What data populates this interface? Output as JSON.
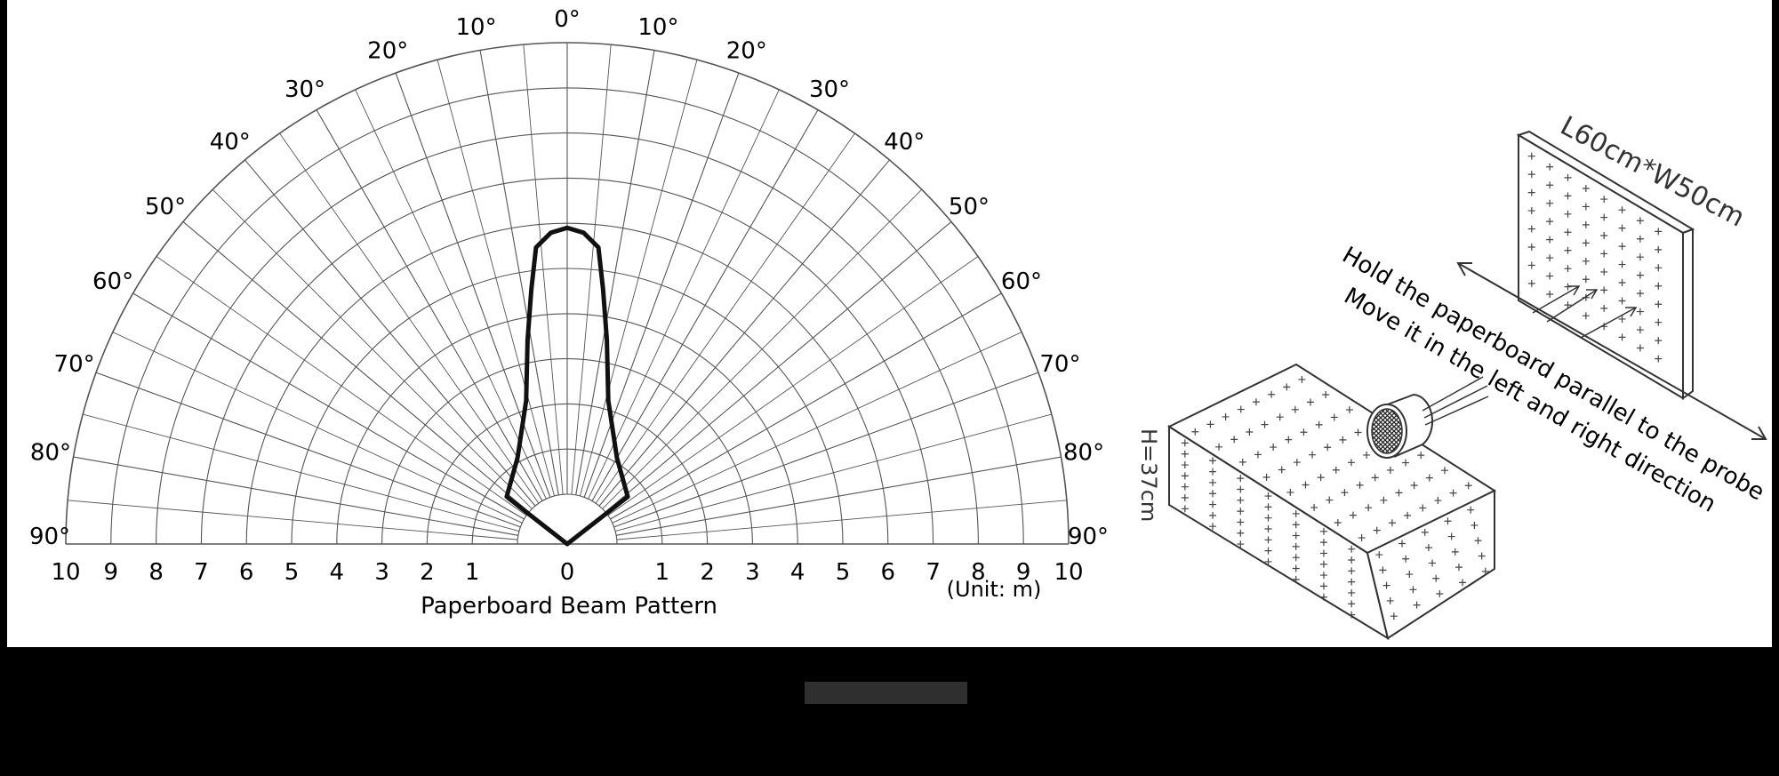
{
  "polar": {
    "angle_labels": [
      "90°",
      "80°",
      "70°",
      "60°",
      "50°",
      "40°",
      "30°",
      "20°",
      "10°",
      "0°",
      "10°",
      "20°",
      "30°",
      "40°",
      "50°",
      "60°",
      "70°",
      "80°",
      "90°"
    ],
    "distance_labels": [
      "10",
      "9",
      "8",
      "7",
      "6",
      "5",
      "4",
      "3",
      "2",
      "1",
      "0",
      "1",
      "2",
      "3",
      "4",
      "5",
      "6",
      "7",
      "8",
      "9",
      "10"
    ],
    "title": "Paperboard Beam Pattern",
    "unit": "(Unit: m)"
  },
  "illustration": {
    "board_size": "L60cm*W50cm",
    "height_label": "H=37cm",
    "instruction_line1": "Hold the paperboard parallel to the probe",
    "instruction_line2": "Move it in the left and right direction"
  },
  "chart_data": {
    "type": "polar",
    "title": "Paperboard Beam Pattern",
    "unit": "m",
    "angle_range": [
      -90,
      90
    ],
    "radius_range": [
      0,
      10
    ],
    "beam_outline": [
      {
        "angle": -90,
        "r": 0.0
      },
      {
        "angle": -52,
        "r": 0.6
      },
      {
        "angle": -30,
        "r": 1.1
      },
      {
        "angle": -16,
        "r": 2.2
      },
      {
        "angle": -11,
        "r": 3.5
      },
      {
        "angle": -8,
        "r": 4.6
      },
      {
        "angle": -6,
        "r": 5.5
      },
      {
        "angle": -3,
        "r": 5.8
      },
      {
        "angle": 0,
        "r": 5.9
      },
      {
        "angle": 3,
        "r": 5.8
      },
      {
        "angle": 6,
        "r": 5.5
      },
      {
        "angle": 8,
        "r": 4.6
      },
      {
        "angle": 11,
        "r": 3.5
      },
      {
        "angle": 16,
        "r": 2.2
      },
      {
        "angle": 30,
        "r": 1.1
      },
      {
        "angle": 52,
        "r": 0.6
      },
      {
        "angle": 90,
        "r": 0.0
      }
    ]
  }
}
